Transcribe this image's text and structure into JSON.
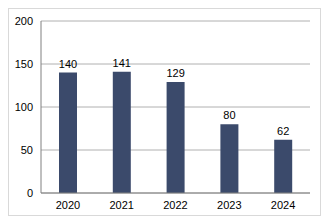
{
  "chart_data": {
    "type": "bar",
    "categories": [
      "2020",
      "2021",
      "2022",
      "2023",
      "2024"
    ],
    "values": [
      140,
      141,
      129,
      80,
      62
    ],
    "color": "#3b4a6b",
    "ylim": [
      0,
      200
    ],
    "yticks": [
      0,
      50,
      100,
      150,
      200
    ],
    "grid": true,
    "data_labels": true
  }
}
